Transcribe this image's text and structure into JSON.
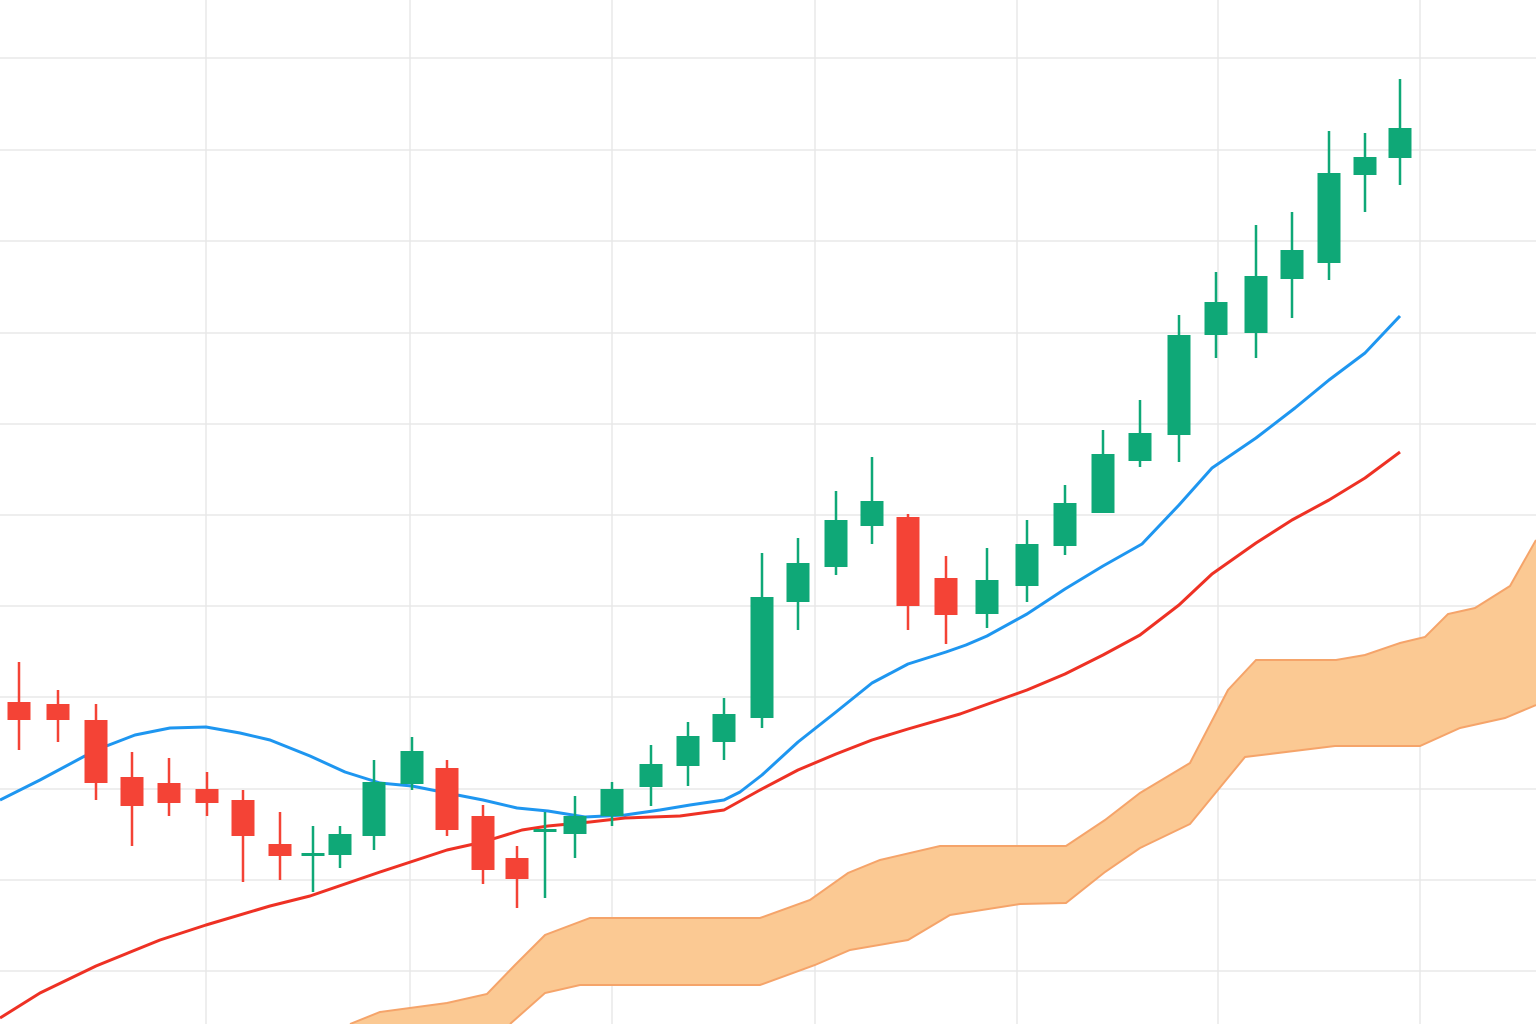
{
  "chart_data": {
    "type": "candlestick",
    "xlim": [
      0,
      1536
    ],
    "ylim": [
      0,
      1024
    ],
    "xticks": [
      206,
      410,
      612,
      815,
      1017,
      1218,
      1420
    ],
    "yticks": [
      53,
      144,
      235,
      327,
      418,
      509,
      600,
      691,
      783,
      874,
      966
    ],
    "grid": true,
    "up_color": "#0fa877",
    "down_color": "#f44336",
    "x": [
      19,
      58,
      96,
      132,
      169,
      207,
      243,
      280,
      313,
      340,
      374,
      412,
      447,
      483,
      517,
      545,
      575,
      612,
      651,
      688,
      724,
      762,
      798,
      836,
      872,
      908,
      946,
      987,
      1027,
      1065,
      1103,
      1140,
      1179,
      1216,
      1256,
      1292,
      1329,
      1365,
      1400
    ],
    "open": [
      322,
      320,
      304,
      247,
      241,
      235,
      224,
      180,
      168,
      169,
      188,
      240,
      256,
      208,
      166,
      192,
      190,
      208,
      237,
      258,
      282,
      306,
      422,
      457,
      498,
      507,
      446,
      410,
      438,
      478,
      511,
      563,
      589,
      689,
      691,
      745,
      761,
      849,
      866
    ],
    "close": [
      304,
      304,
      241,
      218,
      221,
      221,
      188,
      168,
      171,
      190,
      242,
      273,
      194,
      154,
      145,
      195,
      208,
      235,
      260,
      288,
      310,
      427,
      461,
      504,
      523,
      418,
      409,
      444,
      480,
      521,
      570,
      591,
      689,
      722,
      748,
      774,
      851,
      867,
      896
    ],
    "high": [
      362,
      334,
      320,
      272,
      266,
      252,
      234,
      212,
      198,
      198,
      264,
      287,
      264,
      219,
      178,
      212,
      228,
      242,
      279,
      302,
      326,
      471,
      486,
      533,
      567,
      510,
      468,
      476,
      504,
      539,
      594,
      624,
      709,
      752,
      799,
      812,
      893,
      891,
      945
    ],
    "low": [
      274,
      282,
      224,
      178,
      208,
      208,
      142,
      144,
      132,
      156,
      174,
      234,
      188,
      140,
      116,
      126,
      166,
      198,
      218,
      238,
      264,
      296,
      394,
      449,
      480,
      394,
      380,
      396,
      422,
      469,
      511,
      557,
      562,
      666,
      666,
      706,
      744,
      812,
      839
    ],
    "lines": [
      {
        "color": "#1e96f0",
        "x": [
          0,
          40,
          96,
          135,
          170,
          206,
          240,
          270,
          310,
          345,
          380,
          412,
          447,
          483,
          517,
          548,
          585,
          625,
          660,
          690,
          724,
          740,
          762,
          798,
          836,
          872,
          908,
          946,
          966,
          987,
          1027,
          1065,
          1103,
          1142,
          1179,
          1212,
          1256,
          1295,
          1329,
          1365,
          1400
        ],
        "values": [
          224,
          244,
          274,
          289,
          296,
          297,
          291,
          284,
          268,
          252,
          241,
          238,
          231,
          224,
          216,
          213,
          207,
          209,
          214,
          219,
          224,
          232,
          249,
          282,
          312,
          341,
          360,
          372,
          379,
          388,
          410,
          435,
          458,
          480,
          519,
          556,
          586,
          616,
          644,
          671,
          708
        ]
      },
      {
        "color": "#ee3124",
        "x": [
          0,
          40,
          96,
          160,
          206,
          270,
          310,
          380,
          447,
          483,
          522,
          548,
          590,
          625,
          680,
          724,
          760,
          798,
          836,
          872,
          908,
          960,
          1027,
          1065,
          1103,
          1140,
          1179,
          1212,
          1256,
          1292,
          1329,
          1365,
          1400
        ],
        "values": [
          6,
          31,
          58,
          84,
          99,
          118,
          128,
          152,
          174,
          182,
          194,
          198,
          202,
          206,
          208,
          214,
          234,
          254,
          270,
          284,
          295,
          310,
          334,
          350,
          369,
          389,
          419,
          450,
          481,
          504,
          524,
          546,
          572
        ]
      }
    ],
    "cloud": {
      "color": "#fbc993",
      "edge_color": "#f5a46a",
      "upper": {
        "x": [
          350,
          380,
          447,
          487,
          515,
          545,
          590,
          760,
          810,
          848,
          880,
          940,
          1066,
          1105,
          1140,
          1190,
          1228,
          1256,
          1336,
          1365,
          1400,
          1425,
          1448,
          1475,
          1510,
          1536
        ],
        "values": [
          0,
          12,
          21,
          30,
          59,
          89,
          106,
          106,
          124,
          151,
          164,
          178,
          178,
          204,
          231,
          261,
          334,
          364,
          364,
          369,
          381,
          387,
          410,
          416,
          438,
          484
        ]
      },
      "lower": {
        "x": [
          510,
          545,
          580,
          760,
          815,
          850,
          908,
          950,
          1020,
          1066,
          1105,
          1140,
          1190,
          1245,
          1335,
          1420,
          1460,
          1505,
          1536
        ],
        "values": [
          0,
          31,
          39,
          39,
          59,
          74,
          84,
          109,
          120,
          121,
          152,
          176,
          200,
          267,
          278,
          278,
          296,
          306,
          319
        ]
      }
    }
  }
}
